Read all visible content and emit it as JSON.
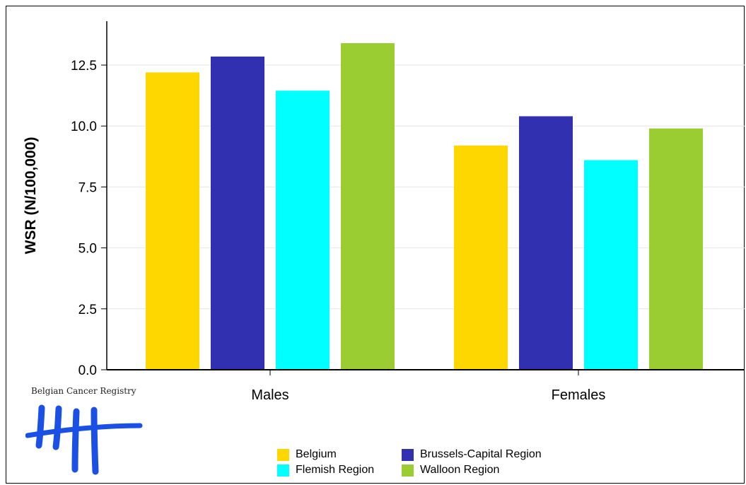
{
  "chart_data": {
    "type": "bar",
    "title": "",
    "xlabel": "",
    "ylabel": "WSR (N/100,000)",
    "ylim": [
      0,
      14.3
    ],
    "yticks": [
      "0.0",
      "2.5",
      "5.0",
      "7.5",
      "10.0",
      "12.5"
    ],
    "ytick_values": [
      0,
      2.5,
      5.0,
      7.5,
      10.0,
      12.5
    ],
    "grid": true,
    "categories": [
      "Males",
      "Females"
    ],
    "series": [
      {
        "name": "Belgium",
        "color": "#FFD700",
        "values": [
          12.2,
          9.2
        ]
      },
      {
        "name": "Brussels-Capital Region",
        "color": "#3030B0",
        "values": [
          12.85,
          10.4
        ]
      },
      {
        "name": "Flemish Region",
        "color": "#00FFFF",
        "values": [
          11.45,
          8.6
        ]
      },
      {
        "name": "Walloon Region",
        "color": "#9ACD32",
        "values": [
          13.4,
          9.9
        ]
      }
    ],
    "legend_position": "bottom-center"
  },
  "logo": {
    "text": "Belgian Cancer Registry",
    "color": "#1a50e6"
  }
}
